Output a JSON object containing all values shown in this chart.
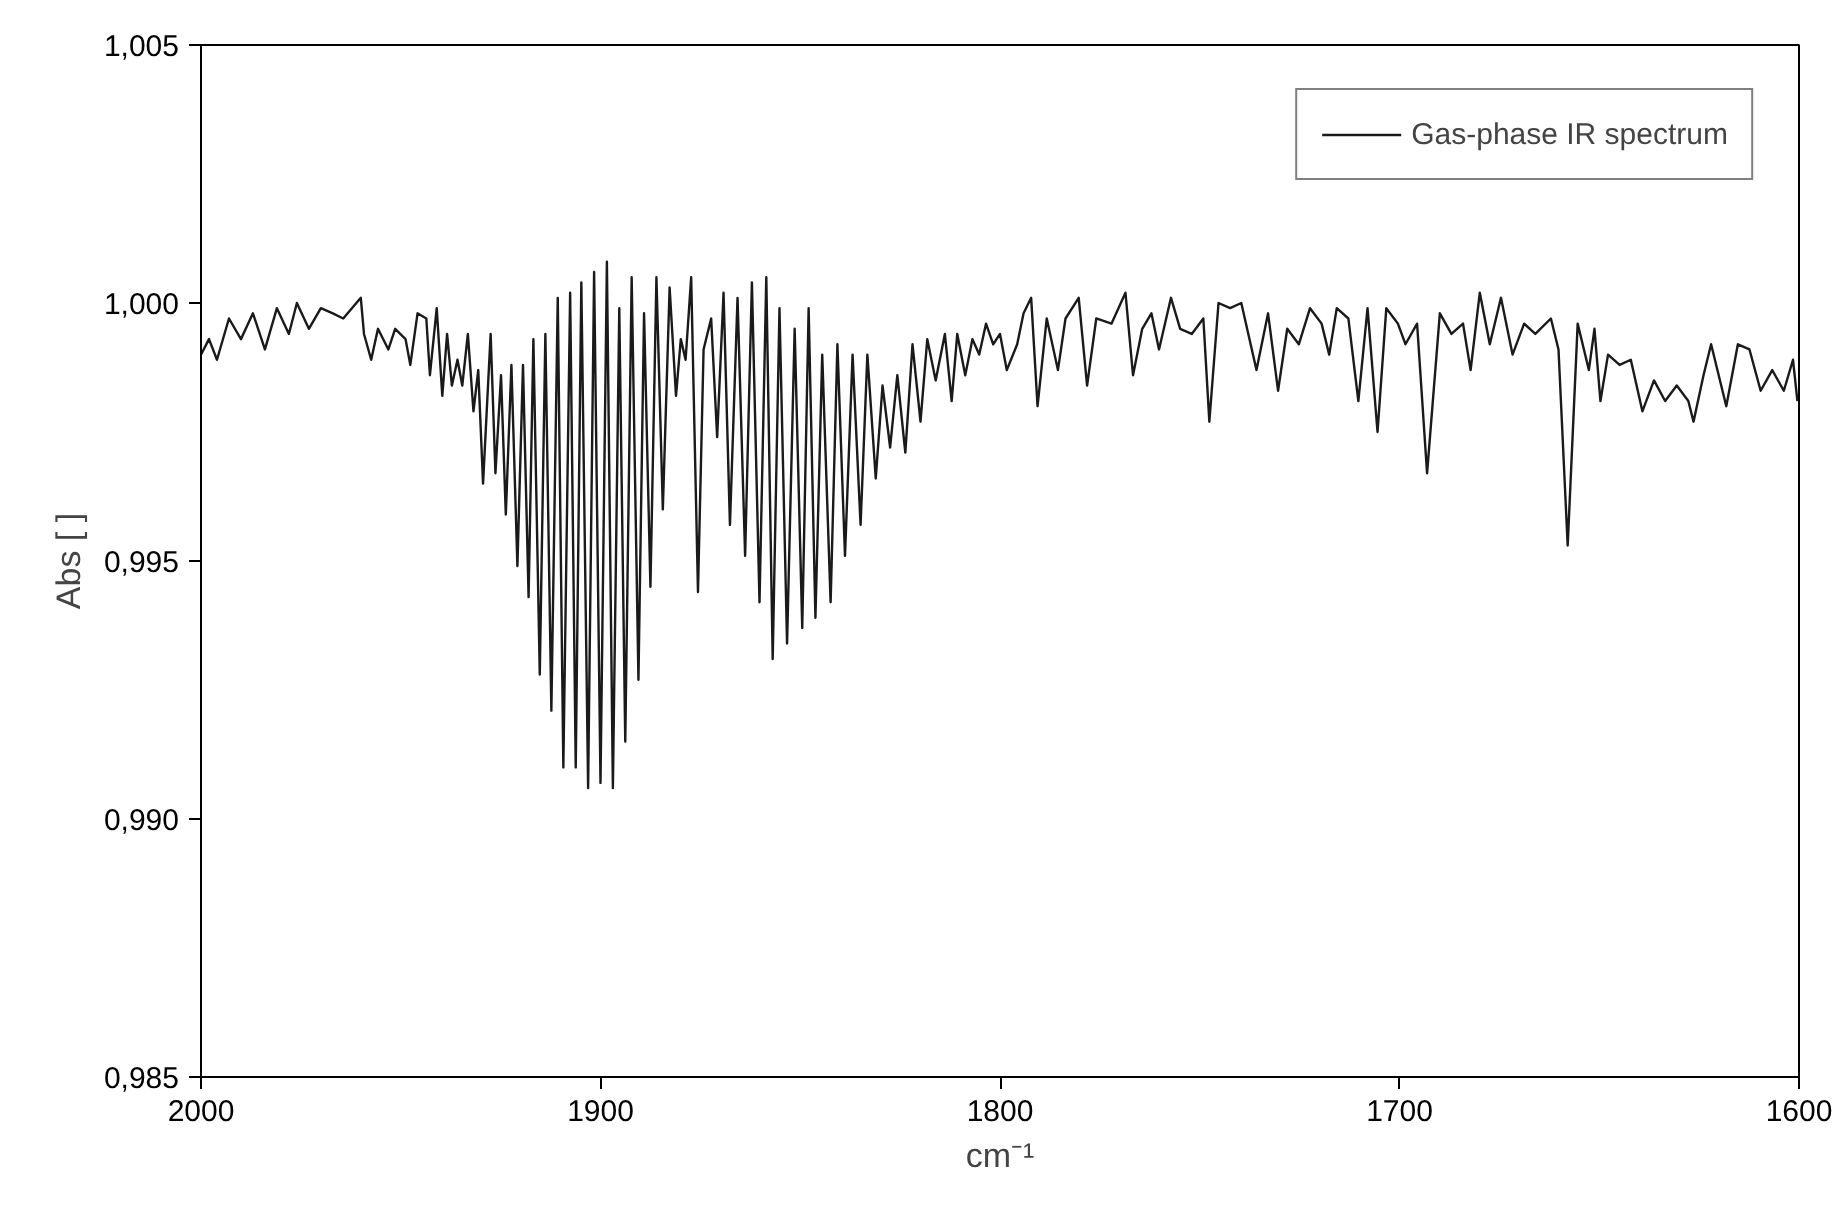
{
  "chart_data": {
    "type": "line",
    "xlabel": "cm⁻¹",
    "ylabel": "Abs [ ]",
    "xlim": [
      2000,
      1600
    ],
    "ylim": [
      0.985,
      1.005
    ],
    "xticks": [
      2000,
      1900,
      1800,
      1700,
      1600
    ],
    "yticks": [
      {
        "value": 0.985,
        "label": "0,985"
      },
      {
        "value": 0.99,
        "label": "0,990"
      },
      {
        "value": 0.995,
        "label": "0,995"
      },
      {
        "value": 1.0,
        "label": "1,000"
      },
      {
        "value": 1.005,
        "label": "1,005"
      }
    ],
    "grid": false,
    "legend": "top right",
    "line_style": "solid",
    "series": [
      {
        "name": "Gas-phase IR spectrum",
        "color": "#1a1a1a",
        "x": [
          2000,
          1998,
          1996,
          1993,
          1990,
          1987,
          1984,
          1981,
          1978,
          1976,
          1973,
          1970,
          1967.0,
          1964.4,
          1960.0,
          1959.2,
          1957.4,
          1955.7,
          1953.1,
          1951.4,
          1948.8,
          1947.6,
          1945.8,
          1943.6,
          1942.7,
          1941.0,
          1939.6,
          1938.4,
          1937.2,
          1935.8,
          1934.6,
          1933.2,
          1931.8,
          1930.6,
          1929.4,
          1927.5,
          1926.3,
          1924.9,
          1923.7,
          1922.3,
          1920.8,
          1919.4,
          1918.0,
          1916.8,
          1915.2,
          1913.8,
          1912.3,
          1910.7,
          1909.3,
          1907.6,
          1906.2,
          1904.8,
          1903.1,
          1901.6,
          1900.0,
          1898.4,
          1896.9,
          1895.3,
          1893.8,
          1892.2,
          1890.5,
          1889.1,
          1887.5,
          1886.0,
          1884.4,
          1882.7,
          1881.1,
          1879.9,
          1878.7,
          1877.3,
          1875.6,
          1874.2,
          1872.3,
          1870.8,
          1869.2,
          1867.6,
          1865.7,
          1863.8,
          1862.1,
          1860.2,
          1858.5,
          1856.9,
          1855.2,
          1853.3,
          1851.4,
          1849.5,
          1847.9,
          1846.2,
          1844.5,
          1842.4,
          1840.7,
          1838.8,
          1836.9,
          1834.9,
          1833.2,
          1831.1,
          1829.4,
          1827.5,
          1825.7,
          1823.7,
          1821.9,
          1819.9,
          1818.2,
          1816.1,
          1813.8,
          1812.1,
          1810.7,
          1808.7,
          1806.9,
          1805.2,
          1803.5,
          1801.7,
          1800.0,
          1798.3,
          1795.7,
          1794.1,
          1792.2,
          1790.6,
          1788.3,
          1785.5,
          1783.6,
          1780.3,
          1778.2,
          1775.9,
          1772.1,
          1768.6,
          1766.7,
          1764.4,
          1762.1,
          1760.2,
          1757.2,
          1754.9,
          1752.0,
          1749.1,
          1747.6,
          1745.3,
          1742.4,
          1739.6,
          1735.8,
          1732.9,
          1730.4,
          1728.1,
          1725.2,
          1722.4,
          1719.5,
          1717.6,
          1715.7,
          1712.8,
          1710.3,
          1708.0,
          1705.5,
          1703.3,
          1700.4,
          1698.5,
          1695.6,
          1693.1,
          1689.9,
          1687.0,
          1684.1,
          1682.2,
          1679.9,
          1677.4,
          1674.6,
          1671.7,
          1668.8,
          1666.0,
          1662.1,
          1660.2,
          1657.9,
          1655.4,
          1652.6,
          1651.2,
          1649.7,
          1647.8,
          1644.9,
          1642.1,
          1639.2,
          1636.3,
          1633.5,
          1630.6,
          1627.7,
          1626.4,
          1623.9,
          1622.0,
          1618.2,
          1615.3,
          1612.4,
          1609.6,
          1606.7,
          1603.8,
          1601.5,
          1600.4
        ],
        "values": [
          0.999,
          0.9993,
          0.9989,
          0.9997,
          0.9993,
          0.9998,
          0.9991,
          0.9999,
          0.9994,
          1.0,
          0.9995,
          0.9999,
          0.9998,
          0.9997,
          1.0001,
          0.9994,
          0.9989,
          0.9995,
          0.9991,
          0.9995,
          0.9993,
          0.9988,
          0.9998,
          0.9997,
          0.9986,
          0.9999,
          0.9982,
          0.9994,
          0.9984,
          0.9989,
          0.9984,
          0.9994,
          0.9979,
          0.9987,
          0.9965,
          0.9994,
          0.9967,
          0.9986,
          0.9959,
          0.9988,
          0.9949,
          0.9988,
          0.9943,
          0.9993,
          0.9928,
          0.9994,
          0.9921,
          1.0001,
          0.991,
          1.0002,
          0.991,
          1.0004,
          0.9906,
          1.0006,
          0.9907,
          1.0008,
          0.9906,
          0.9999,
          0.9915,
          1.0005,
          0.9927,
          0.9998,
          0.9945,
          1.0005,
          0.996,
          1.0003,
          0.9982,
          0.9993,
          0.9989,
          1.0005,
          0.9944,
          0.9991,
          0.9997,
          0.9974,
          1.0002,
          0.9957,
          1.0001,
          0.9951,
          1.0004,
          0.9942,
          1.0005,
          0.9931,
          0.9999,
          0.9934,
          0.9995,
          0.9937,
          0.9999,
          0.9939,
          0.999,
          0.9942,
          0.9992,
          0.9951,
          0.999,
          0.9957,
          0.999,
          0.9966,
          0.9984,
          0.9972,
          0.9986,
          0.9971,
          0.9992,
          0.9977,
          0.9993,
          0.9985,
          0.9994,
          0.9981,
          0.9994,
          0.9986,
          0.9993,
          0.999,
          0.9996,
          0.9992,
          0.9994,
          0.9987,
          0.9992,
          0.9998,
          1.0001,
          0.998,
          0.9997,
          0.9987,
          0.9997,
          1.0001,
          0.9984,
          0.9997,
          0.9996,
          1.0002,
          0.9986,
          0.9995,
          0.9998,
          0.9991,
          1.0001,
          0.9995,
          0.9994,
          0.9997,
          0.9977,
          1.0,
          0.9999,
          1.0,
          0.9987,
          0.9998,
          0.9983,
          0.9995,
          0.9992,
          0.9999,
          0.9996,
          0.999,
          0.9999,
          0.9997,
          0.9981,
          0.9999,
          0.9975,
          0.9999,
          0.9996,
          0.9992,
          0.9996,
          0.9967,
          0.9998,
          0.9994,
          0.9996,
          0.9987,
          1.0002,
          0.9992,
          1.0001,
          0.999,
          0.9996,
          0.9994,
          0.9997,
          0.9991,
          0.9953,
          0.9996,
          0.9987,
          0.9995,
          0.9981,
          0.999,
          0.9988,
          0.9989,
          0.9979,
          0.9985,
          0.9981,
          0.9984,
          0.9981,
          0.9977,
          0.9986,
          0.9992,
          0.998,
          0.9992,
          0.9991,
          0.9983,
          0.9987,
          0.9983,
          0.9989,
          0.9981
        ]
      }
    ]
  }
}
